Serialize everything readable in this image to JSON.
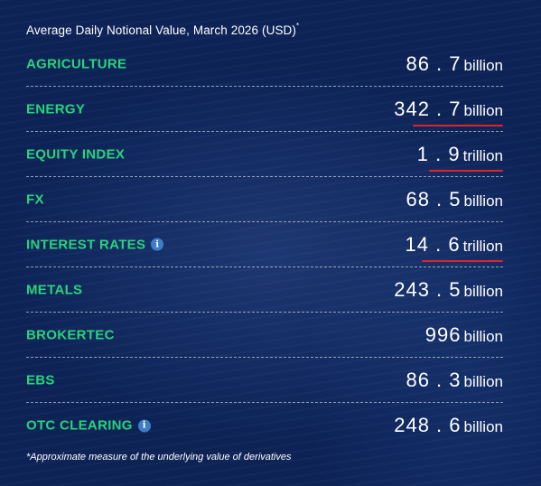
{
  "header": {
    "title": "Average Daily Notional Value, March 2026 (USD)",
    "title_mark": "*"
  },
  "rows": [
    {
      "label": "AGRICULTURE",
      "value": "86 . 7",
      "unit": "billion",
      "info": false,
      "underlined": false
    },
    {
      "label": "ENERGY",
      "value": "342 . 7",
      "unit": "billion",
      "info": false,
      "underlined": true
    },
    {
      "label": "EQUITY INDEX",
      "value": "1 . 9",
      "unit": "trillion",
      "info": false,
      "underlined": true
    },
    {
      "label": "FX",
      "value": "68 . 5",
      "unit": "billion",
      "info": false,
      "underlined": false
    },
    {
      "label": "INTEREST RATES",
      "value": "14 . 6",
      "unit": "trillion",
      "info": true,
      "underlined": true
    },
    {
      "label": "METALS",
      "value": "243 . 5",
      "unit": "billion",
      "info": false,
      "underlined": false
    },
    {
      "label": "BROKERTEC",
      "value": "996",
      "unit": "billion",
      "info": false,
      "underlined": false
    },
    {
      "label": "EBS",
      "value": "86 . 3",
      "unit": "billion",
      "info": false,
      "underlined": false
    },
    {
      "label": "OTC CLEARING",
      "value": "248 . 6",
      "unit": "billion",
      "info": true,
      "underlined": false
    }
  ],
  "footnote": "*Approximate measure of the underlying value of derivatives",
  "icons": {
    "info": "info-icon"
  },
  "colors": {
    "background": "#0d2356",
    "label": "#28d47c",
    "value": "#ffffff",
    "annotation": "#e32228",
    "info_icon": "#3d7dc8"
  }
}
